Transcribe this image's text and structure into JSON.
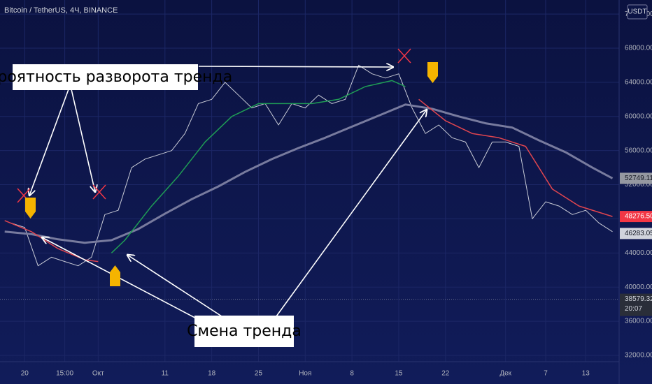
{
  "chart_data": {
    "type": "line",
    "title": "Bitcoin / TetherUS, 4Ч, BINANCE",
    "currency": "USDT",
    "xlim": [
      -3.7,
      89
    ],
    "ylim": [
      28645,
      73646
    ],
    "xticks": [
      {
        "value": 0,
        "label": "20"
      },
      {
        "value": 6,
        "label": "15:00"
      },
      {
        "value": 11,
        "label": "Окт"
      },
      {
        "value": 21,
        "label": "11"
      },
      {
        "value": 28,
        "label": "18"
      },
      {
        "value": 35,
        "label": "25"
      },
      {
        "value": 42,
        "label": "Ноя"
      },
      {
        "value": 49,
        "label": "8"
      },
      {
        "value": 56,
        "label": "15"
      },
      {
        "value": 63,
        "label": "22"
      },
      {
        "value": 72,
        "label": "Дек"
      },
      {
        "value": 78,
        "label": "7"
      },
      {
        "value": 84,
        "label": "13"
      }
    ],
    "yticks": [
      {
        "value": 32000,
        "label": "32000.00"
      },
      {
        "value": 36000,
        "label": "36000.00"
      },
      {
        "value": 40000,
        "label": "40000.00"
      },
      {
        "value": 44000,
        "label": "44000.00"
      },
      {
        "value": 48000,
        "label": "48000.00"
      },
      {
        "value": 52000,
        "label": "52000.00"
      },
      {
        "value": 56000,
        "label": "56000.00"
      },
      {
        "value": 60000,
        "label": "60000.00"
      },
      {
        "value": 64000,
        "label": "64000.00"
      },
      {
        "value": 68000,
        "label": "68000.00"
      },
      {
        "value": 72000,
        "label": "72000.00"
      }
    ],
    "grid": true,
    "series": [
      {
        "color": "#c8cbd6",
        "width": 1,
        "x": [
          -2,
          0,
          2,
          4,
          6,
          8,
          10,
          12,
          14,
          16,
          18,
          20,
          22,
          24,
          26,
          28,
          30,
          32,
          34,
          36,
          38,
          40,
          42,
          44,
          46,
          48,
          50,
          52,
          54,
          56,
          58,
          60,
          62,
          64,
          66,
          68,
          70,
          72,
          74,
          76,
          78,
          80,
          82,
          84,
          86,
          88
        ],
        "values": [
          47500,
          47000,
          42500,
          43500,
          43000,
          42500,
          43500,
          48500,
          49000,
          54000,
          55000,
          55500,
          56000,
          58000,
          61500,
          62000,
          64000,
          62500,
          61000,
          61500,
          59000,
          61500,
          61000,
          62500,
          61500,
          62000,
          66000,
          65000,
          64500,
          65000,
          61000,
          58000,
          59000,
          57500,
          57000,
          54000,
          57000,
          57000,
          56500,
          48000,
          50000,
          49500,
          48500,
          49000,
          47500,
          46500
        ]
      },
      {
        "color": "#787b9e",
        "width": 3,
        "x": [
          -3,
          1,
          5,
          9,
          13,
          17,
          21,
          25,
          29,
          33,
          37,
          41,
          45,
          49,
          53,
          57,
          61,
          65,
          69,
          73,
          77,
          81,
          85,
          88
        ],
        "values": [
          46500,
          46200,
          45600,
          45200,
          45500,
          46800,
          48600,
          50300,
          51800,
          53500,
          55000,
          56300,
          57500,
          58800,
          60100,
          61400,
          60900,
          60000,
          59200,
          58700,
          57200,
          55800,
          54000,
          52749
        ]
      },
      {
        "color": "#e0454f",
        "width": 1.5,
        "x": [
          -3,
          1,
          5,
          9,
          11,
          null,
          59,
          63,
          67,
          71,
          75,
          79,
          83,
          88
        ],
        "values": [
          47800,
          46500,
          44500,
          43200,
          43000,
          null,
          62000,
          59500,
          58000,
          57500,
          56500,
          51500,
          49500,
          48276
        ]
      },
      {
        "color": "#1f9d55",
        "width": 1.5,
        "x": [
          13,
          15,
          19,
          23,
          27,
          31,
          35,
          39,
          43,
          47,
          51,
          55,
          57
        ],
        "values": [
          44000,
          45500,
          49500,
          53000,
          57000,
          60000,
          61500,
          61500,
          61500,
          62000,
          63500,
          64200,
          63500
        ]
      }
    ],
    "price_labels": [
      {
        "value": 52749.11,
        "label": "52749.11",
        "color": "#9598a1",
        "text_color": "#131722"
      },
      {
        "value": 48276.5,
        "label": "48276.50",
        "color": "#f23645",
        "text_color": "#ffffff"
      },
      {
        "value": 46283.05,
        "label": "46283.05",
        "color": "#d1d4dc",
        "text_color": "#131722"
      },
      {
        "value": 38579.32,
        "label": "38579.32",
        "sub": "20:07",
        "color": "#2a2e39",
        "text_color": "#d1d4dc"
      }
    ],
    "annotations": [
      "Вероятность разворота тренда",
      "Смена тренда"
    ]
  }
}
